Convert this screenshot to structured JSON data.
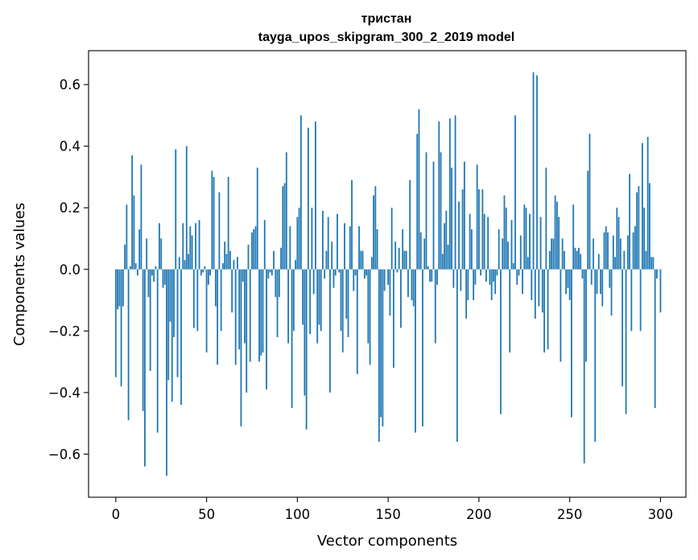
{
  "chart_data": {
    "type": "bar",
    "title": "тристан",
    "subtitle": "tayga_upos_skipgram_300_2_2019 model",
    "xlabel": "Vector components",
    "ylabel": "Components values",
    "xlim": [
      -15,
      314
    ],
    "ylim": [
      -0.74,
      0.71
    ],
    "x_ticks": [
      0,
      50,
      100,
      150,
      200,
      250,
      300
    ],
    "y_ticks": [
      -0.6,
      -0.4,
      -0.2,
      0.0,
      0.2,
      0.4,
      0.6
    ],
    "y_tick_labels": [
      "−0.6",
      "−0.4",
      "−0.2",
      "0.0",
      "0.2",
      "0.4",
      "0.6"
    ],
    "x_tick_labels": [
      "0",
      "50",
      "100",
      "150",
      "200",
      "250",
      "300"
    ],
    "bar_color": "#1f77b4",
    "grid": false,
    "values": [
      -0.35,
      -0.13,
      -0.12,
      -0.38,
      -0.12,
      0.08,
      0.21,
      -0.49,
      0.01,
      0.37,
      0.24,
      0.02,
      -0.02,
      0.13,
      0.34,
      -0.46,
      -0.64,
      0.1,
      -0.09,
      -0.33,
      -0.02,
      -0.04,
      0.01,
      -0.53,
      0.15,
      0.1,
      -0.06,
      -0.05,
      -0.67,
      -0.36,
      -0.17,
      -0.43,
      -0.22,
      0.39,
      -0.35,
      0.04,
      -0.44,
      0.15,
      0.03,
      0.4,
      0.05,
      0.14,
      0.11,
      -0.19,
      0.15,
      -0.2,
      0.16,
      -0.02,
      -0.01,
      0.01,
      -0.27,
      -0.05,
      -0.02,
      0.32,
      0.3,
      -0.12,
      -0.31,
      0.25,
      -0.2,
      0.02,
      0.09,
      0.05,
      0.3,
      0.06,
      -0.14,
      0.03,
      -0.31,
      0.04,
      -0.26,
      -0.51,
      -0.04,
      -0.24,
      -0.4,
      0.08,
      -0.3,
      0.12,
      0.13,
      0.14,
      0.33,
      -0.3,
      -0.28,
      -0.27,
      0.16,
      -0.39,
      -0.03,
      -0.01,
      -0.02,
      0.06,
      -0.09,
      -0.22,
      -0.09,
      0.07,
      0.27,
      0.28,
      0.38,
      -0.24,
      0.14,
      -0.45,
      -0.2,
      0.03,
      0.17,
      0.2,
      0.5,
      -0.18,
      -0.41,
      -0.52,
      0.46,
      -0.21,
      0.2,
      -0.08,
      0.48,
      -0.24,
      -0.18,
      -0.2,
      0.19,
      -0.03,
      0.06,
      0.17,
      -0.4,
      0.09,
      -0.06,
      -0.02,
      0.18,
      -0.01,
      -0.2,
      -0.27,
      0.15,
      -0.16,
      -0.22,
      0.14,
      0.29,
      -0.07,
      -0.02,
      -0.34,
      0.14,
      0.06,
      0.06,
      -0.03,
      -0.02,
      -0.24,
      -0.31,
      0.04,
      0.24,
      0.27,
      0.13,
      -0.56,
      -0.48,
      -0.51,
      -0.07,
      0.0,
      -0.05,
      -0.15,
      0.2,
      -0.32,
      0.09,
      -0.01,
      0.07,
      -0.19,
      0.13,
      0.06,
      0.06,
      -0.09,
      0.29,
      -0.1,
      -0.12,
      -0.53,
      0.44,
      0.52,
      0.12,
      -0.51,
      0.1,
      0.38,
      0.01,
      -0.04,
      -0.04,
      0.35,
      -0.24,
      -0.05,
      0.48,
      0.38,
      0.05,
      0.15,
      0.19,
      0.08,
      0.49,
      0.33,
      -0.06,
      0.5,
      -0.56,
      0.22,
      -0.07,
      0.26,
      0.35,
      -0.16,
      -0.1,
      0.18,
      0.13,
      -0.1,
      -0.05,
      0.34,
      0.26,
      -0.02,
      0.26,
      0.18,
      -0.04,
      0.17,
      -0.05,
      -0.1,
      -0.04,
      -0.08,
      -0.02,
      0.13,
      -0.47,
      0.1,
      0.24,
      0.2,
      0.09,
      -0.27,
      0.16,
      0.02,
      0.5,
      -0.05,
      -0.02,
      0.11,
      -0.08,
      0.21,
      0.2,
      0.04,
      0.18,
      -0.1,
      0.64,
      -0.16,
      0.63,
      -0.12,
      0.17,
      -0.14,
      -0.27,
      0.33,
      -0.26,
      0.06,
      0.1,
      0.1,
      0.24,
      0.22,
      0.17,
      -0.3,
      0.1,
      0.06,
      -0.08,
      -0.06,
      -0.1,
      -0.48,
      0.21,
      0.07,
      0.06,
      0.07,
      0.05,
      -0.03,
      -0.63,
      -0.3,
      0.32,
      0.44,
      -0.05,
      0.1,
      -0.56,
      -0.08,
      0.05,
      -0.08,
      -0.12,
      0.12,
      0.14,
      0.12,
      -0.06,
      -0.15,
      0.11,
      0.04,
      0.2,
      0.17,
      0.1,
      -0.38,
      0.06,
      -0.47,
      0.11,
      0.31,
      -0.2,
      0.12,
      0.14,
      0.25,
      0.27,
      -0.2,
      0.41,
      0.2,
      0.06,
      0.43,
      0.28,
      0.04,
      0.04,
      -0.45,
      -0.03,
      0.0,
      -0.14
    ]
  }
}
